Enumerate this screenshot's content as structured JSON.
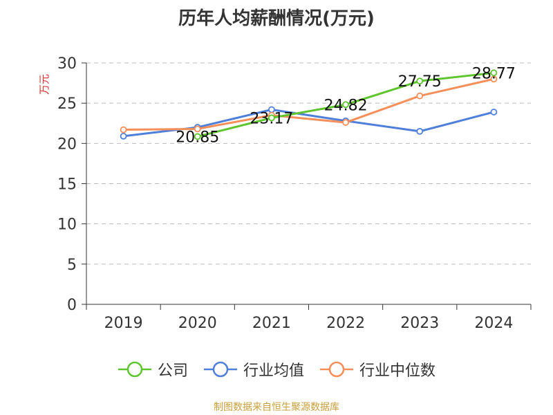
{
  "chart_data": {
    "type": "line",
    "title": "历年人均薪酬情况(万元)",
    "ylabel": "万元",
    "categories": [
      "2019",
      "2020",
      "2021",
      "2022",
      "2023",
      "2024"
    ],
    "ylim": [
      0,
      30
    ],
    "yticks": [
      0,
      5,
      10,
      15,
      20,
      25,
      30
    ],
    "grid": true,
    "legend_position": "bottom",
    "series": [
      {
        "name": "公司",
        "color": "#5fc52e",
        "values": [
          null,
          20.85,
          23.17,
          24.82,
          27.75,
          28.77
        ]
      },
      {
        "name": "行业均值",
        "color": "#4e7fd9",
        "values": [
          20.9,
          22.0,
          24.2,
          22.8,
          21.5,
          23.9
        ]
      },
      {
        "name": "行业中位数",
        "color": "#f58f5a",
        "values": [
          21.7,
          21.8,
          23.5,
          22.6,
          25.9,
          28.0
        ]
      }
    ],
    "data_labels": [
      {
        "category": "2020",
        "text": "20.85"
      },
      {
        "category": "2021",
        "text": "23.17"
      },
      {
        "category": "2022",
        "text": "24.82"
      },
      {
        "category": "2023",
        "text": "27.75"
      },
      {
        "category": "2024",
        "text": "28.77"
      }
    ]
  },
  "source": "制图数据来自恒生聚源数据库"
}
